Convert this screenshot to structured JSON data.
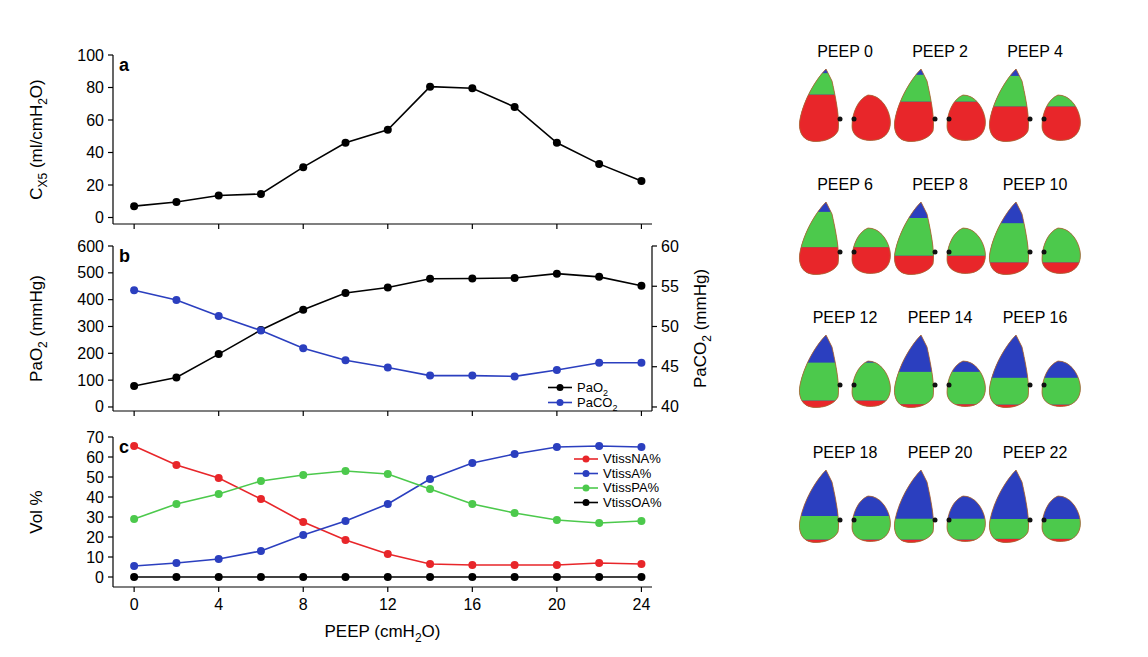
{
  "chart_data": [
    {
      "type": "line",
      "panel": "a",
      "ylabel": "CX5 (ml/cmH2O)",
      "x": [
        0,
        2,
        4,
        6,
        8,
        10,
        12,
        14,
        16,
        18,
        20,
        22,
        24
      ],
      "values": [
        7,
        9.5,
        13.5,
        14.5,
        31,
        46,
        54,
        80.5,
        79.5,
        68,
        46,
        33,
        22.5
      ],
      "color": "#000000",
      "marker": "circle",
      "xlim": [
        -1,
        24.5
      ],
      "xticks": [
        0,
        4,
        8,
        12,
        16,
        20,
        24
      ],
      "ylim": [
        -4,
        100
      ],
      "yticks": [
        0,
        20,
        40,
        60,
        80,
        100
      ],
      "tick_labels": "y",
      "grid": false
    },
    {
      "type": "line",
      "panel": "b",
      "ylabel": "PaO2 (mmHg)",
      "y2label": "PaCO2 (mmHg)",
      "x": [
        0,
        2,
        4,
        6,
        8,
        10,
        12,
        14,
        16,
        18,
        20,
        22,
        24
      ],
      "series": [
        {
          "name": "PaO2",
          "color": "#000000",
          "marker": "circle",
          "values": [
            78,
            110,
            197,
            287,
            362,
            425,
            445,
            478,
            479,
            481,
            497,
            485,
            452
          ]
        },
        {
          "name": "PaCO2",
          "color": "#2b3fbf",
          "marker": "circle",
          "axis": "y2",
          "values": [
            54.5,
            53.3,
            51.3,
            49.5,
            47.3,
            45.8,
            44.9,
            43.9,
            43.9,
            43.8,
            44.6,
            45.5,
            45.5
          ]
        }
      ],
      "xlim": [
        -1,
        24.5
      ],
      "xticks": [
        0,
        4,
        8,
        12,
        16,
        20,
        24
      ],
      "ylim": [
        -15,
        600
      ],
      "yticks": [
        0,
        100,
        200,
        300,
        400,
        500,
        600
      ],
      "y2lim": [
        39.5,
        60
      ],
      "y2ticks": [
        40,
        45,
        50,
        55,
        60
      ],
      "tick_labels": "y",
      "legend": "bottom right",
      "grid": false
    },
    {
      "type": "line",
      "panel": "c",
      "xlabel": "PEEP (cmH2O)",
      "ylabel": "Vol %",
      "x": [
        0,
        2,
        4,
        6,
        8,
        10,
        12,
        14,
        16,
        18,
        20,
        22,
        24
      ],
      "series": [
        {
          "name": "VtissNA%",
          "color": "#e8262a",
          "marker": "circle",
          "values": [
            65.5,
            56,
            49.5,
            39,
            27.5,
            18.5,
            11.5,
            6.5,
            6,
            6,
            6,
            7,
            6.5
          ]
        },
        {
          "name": "VtissA%",
          "color": "#2b3fbf",
          "marker": "circle",
          "values": [
            5.5,
            7,
            9,
            13,
            21,
            28,
            36.5,
            49,
            57,
            61.5,
            65,
            65.5,
            65
          ]
        },
        {
          "name": "VtissPA%",
          "color": "#4cc94c",
          "marker": "circle",
          "values": [
            29,
            36.5,
            41.5,
            48,
            51,
            53,
            51.5,
            44,
            36.5,
            32,
            28.5,
            27,
            28
          ]
        },
        {
          "name": "VtissOA%",
          "color": "#000000",
          "marker": "circle",
          "values": [
            0,
            0,
            0,
            0,
            0,
            0,
            0,
            0,
            0,
            0,
            0,
            0,
            0
          ]
        }
      ],
      "xlim": [
        -1,
        24.5
      ],
      "xticks": [
        0,
        4,
        8,
        12,
        16,
        20,
        24
      ],
      "ylim": [
        -5,
        70
      ],
      "yticks": [
        0,
        10,
        20,
        30,
        40,
        50,
        60,
        70
      ],
      "legend": "top right",
      "grid": false
    }
  ],
  "ct_images": {
    "labels": [
      "PEEP 0",
      "PEEP 2",
      "PEEP 4",
      "PEEP 6",
      "PEEP 8",
      "PEEP 10",
      "PEEP 12",
      "PEEP 14",
      "PEEP 16",
      "PEEP 18",
      "PEEP 20",
      "PEEP 22"
    ]
  }
}
